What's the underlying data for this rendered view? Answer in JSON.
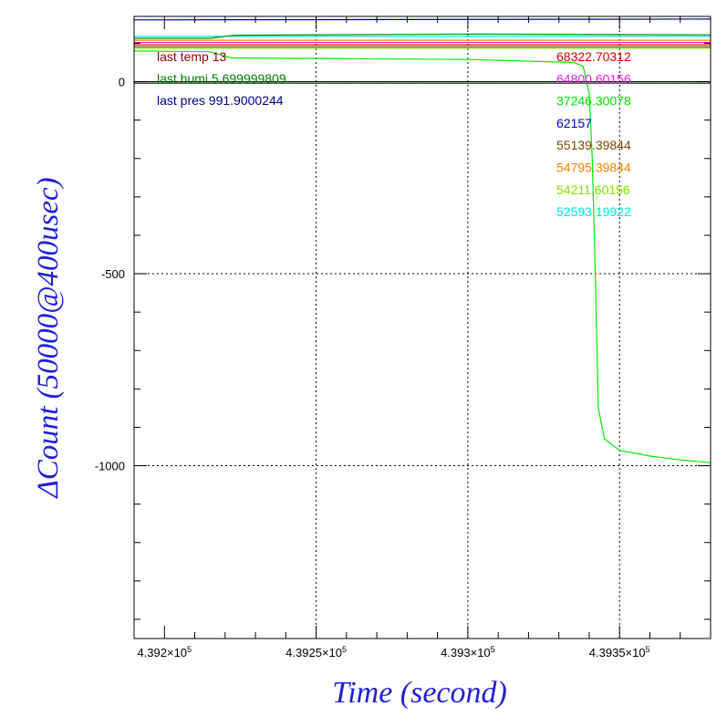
{
  "chart_data": {
    "type": "line",
    "xlabel": "Time (second)",
    "ylabel": "ΔCount (50000@400usec)",
    "xlim": [
      439190,
      439380
    ],
    "ylim": [
      -1450,
      170
    ],
    "x_ticks": [
      {
        "value": 439200,
        "mantissa": "4.392",
        "exponent": "5"
      },
      {
        "value": 439250,
        "mantissa": "4.3925",
        "exponent": "5"
      },
      {
        "value": 439300,
        "mantissa": "4.393",
        "exponent": "5"
      },
      {
        "value": 439350,
        "mantissa": "4.3935",
        "exponent": "5"
      }
    ],
    "x_minor_step": 10,
    "y_ticks": [
      {
        "value": 0,
        "label": "0"
      },
      {
        "value": -500,
        "label": "-500"
      },
      {
        "value": -1000,
        "label": "-1000"
      }
    ],
    "y_minor_step": 100,
    "grid_x": [
      439250,
      439300,
      439350
    ],
    "grid_y": [
      0,
      -500,
      -1000
    ],
    "grid_style": "dotted",
    "series": [
      {
        "color": "#000080",
        "x": [
          439190,
          439380
        ],
        "y": [
          161,
          163
        ]
      },
      {
        "color": "#00e5e5",
        "x": [
          439190,
          439380
        ],
        "y": [
          118,
          118
        ]
      },
      {
        "color": "#0a8a0a",
        "x": [
          439190,
          439215,
          439223,
          439300,
          439380
        ],
        "y": [
          113,
          113,
          121,
          124,
          122
        ]
      },
      {
        "color": "#ff8c00",
        "x": [
          439190,
          439380
        ],
        "y": [
          108,
          108
        ]
      },
      {
        "color": "#e020e0",
        "x": [
          439190,
          439380
        ],
        "y": [
          102,
          102
        ]
      },
      {
        "color": "#c00000",
        "x": [
          439190,
          439380
        ],
        "y": [
          96,
          96
        ]
      },
      {
        "color": "#7a4a00",
        "x": [
          439190,
          439380
        ],
        "y": [
          91,
          91
        ]
      },
      {
        "color": "#80e000",
        "x": [
          439190,
          439380
        ],
        "y": [
          87,
          87
        ]
      },
      {
        "color": "#00ee00",
        "x": [
          439190,
          439215,
          439222,
          439300,
          439335,
          439338,
          439340,
          439341,
          439342,
          439343,
          439345,
          439350,
          439360,
          439370,
          439380
        ],
        "y": [
          80,
          78,
          62,
          58,
          50,
          40,
          -30,
          -200,
          -500,
          -850,
          -930,
          -960,
          -975,
          -985,
          -992
        ]
      },
      {
        "color": "#101010",
        "x": [
          439190,
          439380
        ],
        "y": [
          0,
          0
        ]
      },
      {
        "color": "#1a5a1a",
        "x": [
          439190,
          439380
        ],
        "y": [
          -4,
          -4
        ]
      }
    ],
    "annotations_left": [
      {
        "text": "last temp 13",
        "color": "#8b0000"
      },
      {
        "text": "last humi 5.699999809",
        "color": "#008000"
      },
      {
        "text": "last pres 991.9000244",
        "color": "#000080"
      }
    ],
    "annotations_right": [
      {
        "text": "68322.70312",
        "color": "#d00000"
      },
      {
        "text": "64800.60156",
        "color": "#e020e0"
      },
      {
        "text": "37246.30078",
        "color": "#00dd00"
      },
      {
        "text": "62157",
        "color": "#0000c0"
      },
      {
        "text": "55139.39844",
        "color": "#7a4a00"
      },
      {
        "text": "54795.39844",
        "color": "#ff8000"
      },
      {
        "text": "54211.60156",
        "color": "#80e000"
      },
      {
        "text": "52593.19922",
        "color": "#00e5e5"
      }
    ]
  }
}
